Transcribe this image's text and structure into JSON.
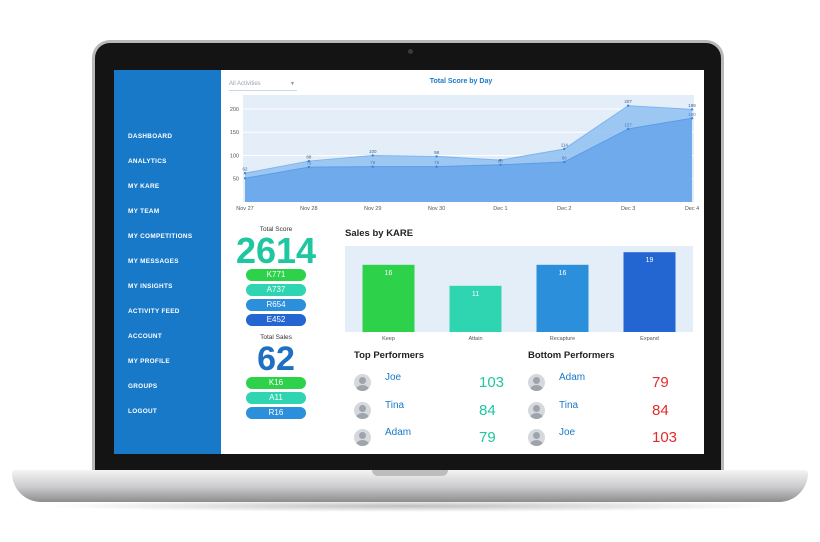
{
  "sidebar": {
    "items": [
      {
        "label": "DASHBOARD"
      },
      {
        "label": "ANALYTICS"
      },
      {
        "label": "MY KARE"
      },
      {
        "label": "MY TEAM"
      },
      {
        "label": "MY COMPETITIONS"
      },
      {
        "label": "MY MESSAGES"
      },
      {
        "label": "MY INSIGHTS"
      },
      {
        "label": "ACTIVITY FEED"
      },
      {
        "label": "ACCOUNT"
      },
      {
        "label": "MY PROFILE"
      },
      {
        "label": "GROUPS"
      },
      {
        "label": "LOGOUT"
      }
    ]
  },
  "filter": {
    "selected": "All Activities",
    "caret_icon": "chevron-down-icon"
  },
  "chart_data": [
    {
      "type": "area",
      "title": "Total Score by Day",
      "x": [
        "Nov 27",
        "Nov 28",
        "Nov 29",
        "Nov 30",
        "Dec 1",
        "Dec 2",
        "Dec 3",
        "Dec 4"
      ],
      "yticks": [
        50,
        100,
        150,
        200
      ],
      "ylim": [
        0,
        230
      ],
      "series": [
        {
          "values": [
            62,
            88,
            100,
            98,
            90,
            114,
            207,
            199
          ],
          "labels": [
            "62",
            "88",
            "100",
            "98",
            "",
            "114",
            "207",
            "199"
          ],
          "color": "#8fbff2"
        },
        {
          "values": [
            51,
            75,
            76,
            76,
            80,
            86,
            157,
            180
          ],
          "labels": [
            "",
            "75",
            "76",
            "76",
            "80",
            "86",
            "157",
            "180"
          ],
          "color": "#6aa6ec"
        }
      ]
    },
    {
      "type": "bar",
      "title": "Sales by KARE",
      "categories": [
        "Keep",
        "Attain",
        "Recapture",
        "Expand"
      ],
      "values": [
        16,
        11,
        16,
        19
      ],
      "colors": [
        "#2ed14a",
        "#2fd4b0",
        "#2b8fdc",
        "#2466d1"
      ],
      "ylim": [
        0,
        20
      ]
    }
  ],
  "total_score": {
    "label": "Total Score",
    "value": "2614",
    "breakdown": [
      {
        "text": "K771",
        "color": "#2ed14a"
      },
      {
        "text": "A737",
        "color": "#2fd4b0"
      },
      {
        "text": "R654",
        "color": "#2b8fdc"
      },
      {
        "text": "E452",
        "color": "#2466d1"
      }
    ]
  },
  "total_sales": {
    "label": "Total Sales",
    "value": "62",
    "breakdown": [
      {
        "text": "K16",
        "color": "#2ed14a"
      },
      {
        "text": "A11",
        "color": "#2fd4b0"
      },
      {
        "text": "R16",
        "color": "#2b8fdc"
      }
    ]
  },
  "top_performers": {
    "title": "Top Performers",
    "rows": [
      {
        "name": "Joe",
        "score": "103"
      },
      {
        "name": "Tina",
        "score": "84"
      },
      {
        "name": "Adam",
        "score": "79"
      }
    ]
  },
  "bottom_performers": {
    "title": "Bottom Performers",
    "rows": [
      {
        "name": "Adam",
        "score": "79"
      },
      {
        "name": "Tina",
        "score": "84"
      },
      {
        "name": "Joe",
        "score": "103"
      }
    ]
  }
}
